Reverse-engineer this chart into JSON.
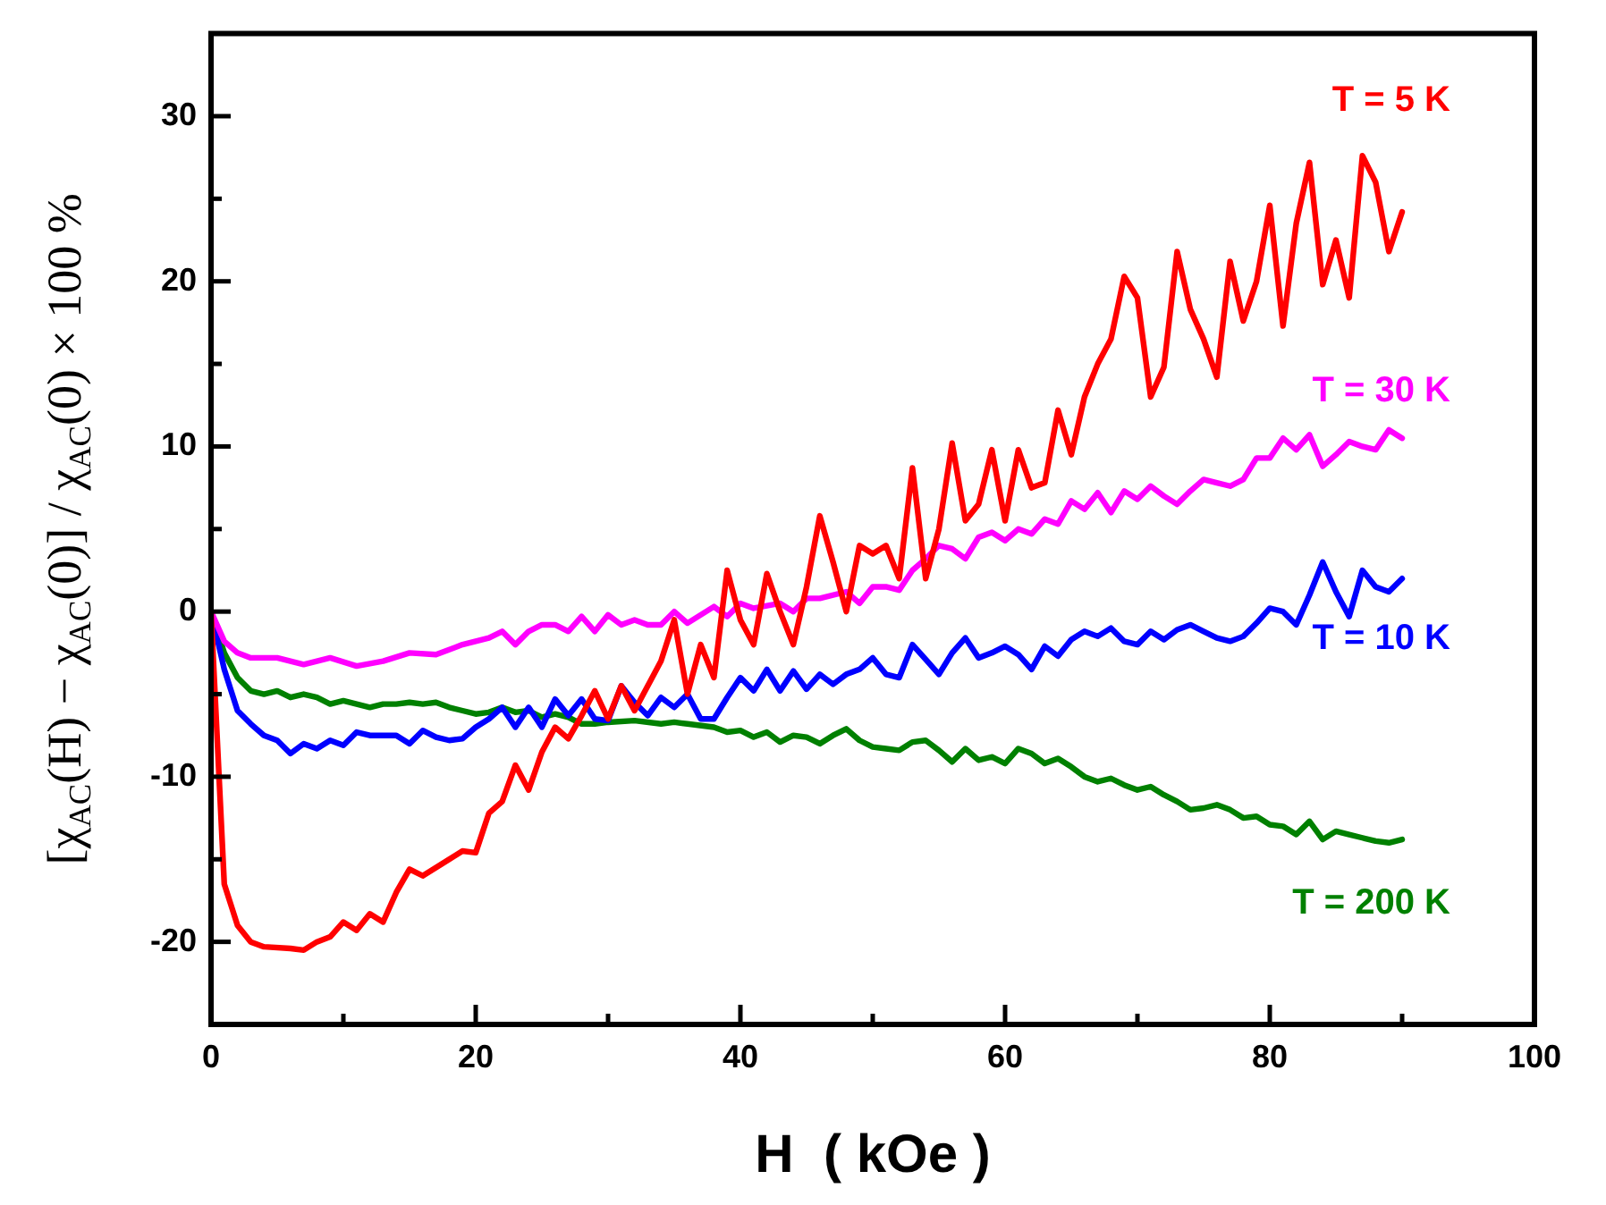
{
  "chart_data": {
    "type": "line",
    "xlabel": "H  ( kOe )",
    "ylabel": "[χ$_{AC}$(H) − χ$_{AC}$(0)] / χ$_{AC}$(0) × 100 %",
    "xlim": [
      0,
      100
    ],
    "xticks": [
      0,
      {
        "value": 10,
        "label": null
      },
      20,
      {
        "value": 30,
        "label": null
      },
      40,
      {
        "value": 50,
        "label": null
      },
      60,
      {
        "value": 70,
        "label": null
      },
      80,
      {
        "value": 90,
        "label": null
      },
      100
    ],
    "ylim": [
      -25,
      35
    ],
    "yticks": [
      -20,
      {
        "value": -15,
        "label": null
      },
      -10,
      {
        "value": -5,
        "label": null
      },
      0,
      {
        "value": 5,
        "label": null
      },
      10,
      {
        "value": 15,
        "label": null
      },
      20,
      {
        "value": 25,
        "label": null
      },
      30
    ],
    "grid": false,
    "legend": false,
    "marker": "none",
    "line_style": "solid",
    "series": [
      {
        "name": "T = 5 K",
        "color": "#ff0000",
        "x": [
          0,
          1,
          2,
          3,
          4,
          6,
          7,
          8,
          9,
          10,
          11,
          12,
          13,
          14,
          15,
          16,
          18,
          19,
          20,
          21,
          22,
          23,
          24,
          25,
          26,
          27,
          28,
          29,
          30,
          31,
          32,
          33,
          34,
          35,
          36,
          37,
          38,
          39,
          40,
          41,
          42,
          43,
          44,
          45,
          46,
          47,
          48,
          49,
          50,
          51,
          52,
          53,
          54,
          55,
          56,
          57,
          58,
          59,
          60,
          61,
          62,
          63,
          64,
          65,
          66,
          67,
          68,
          69,
          70,
          71,
          72,
          73,
          74,
          75,
          76,
          77,
          78,
          79,
          80,
          81,
          82,
          83,
          84,
          85,
          86,
          87,
          88,
          89,
          90
        ],
        "values": [
          0,
          -16.5,
          -19,
          -20,
          -20.3,
          -20.4,
          -20.5,
          -20,
          -19.7,
          -18.8,
          -19.3,
          -18.3,
          -18.8,
          -17,
          -15.6,
          -16,
          -15,
          -14.5,
          -14.6,
          -12.2,
          -11.5,
          -9.3,
          -10.8,
          -8.5,
          -7,
          -7.7,
          -6.3,
          -4.8,
          -6.5,
          -4.5,
          -6,
          -4.5,
          -3,
          -0.5,
          -5,
          -2,
          -4,
          2.5,
          -0.5,
          -2,
          2.3,
          0,
          -2,
          1.5,
          5.8,
          3,
          0,
          4,
          3.5,
          4,
          2,
          8.7,
          2,
          5,
          10.2,
          5.5,
          6.5,
          9.8,
          5.5,
          9.8,
          7.5,
          7.8,
          12.2,
          9.5,
          13,
          15,
          16.5,
          20.3,
          19,
          13,
          14.8,
          21.8,
          18.3,
          16.5,
          14.2,
          21.2,
          17.6,
          20,
          24.6,
          17.3,
          23.5,
          27.2,
          19.8,
          22.5,
          19,
          27.6,
          26,
          21.8,
          24.2
        ]
      },
      {
        "name": "T = 30 K",
        "color": "#ff00ff",
        "x": [
          0,
          1,
          2,
          3,
          5,
          7,
          9,
          11,
          13,
          15,
          17,
          19,
          21,
          22,
          23,
          24,
          25,
          26,
          27,
          28,
          29,
          30,
          31,
          32,
          33,
          34,
          35,
          36,
          38,
          39,
          40,
          41,
          43,
          44,
          45,
          46,
          48,
          49,
          50,
          51,
          52,
          53,
          54,
          55,
          56,
          57,
          58,
          59,
          60,
          61,
          62,
          63,
          64,
          65,
          66,
          67,
          68,
          69,
          70,
          71,
          72,
          73,
          74,
          75,
          76,
          77,
          78,
          79,
          80,
          81,
          82,
          83,
          84,
          85,
          86,
          87,
          88,
          89,
          90
        ],
        "values": [
          0,
          -1.8,
          -2.5,
          -2.8,
          -2.8,
          -3.2,
          -2.8,
          -3.3,
          -3,
          -2.5,
          -2.6,
          -2,
          -1.6,
          -1.2,
          -2,
          -1.2,
          -0.8,
          -0.8,
          -1.2,
          -0.3,
          -1.2,
          -0.2,
          -0.8,
          -0.5,
          -0.8,
          -0.8,
          0,
          -0.7,
          0.3,
          -0.3,
          0.5,
          0.2,
          0.5,
          0,
          0.8,
          0.8,
          1.2,
          0.5,
          1.5,
          1.5,
          1.3,
          2.5,
          3.2,
          4,
          3.8,
          3.2,
          4.5,
          4.8,
          4.3,
          5,
          4.7,
          5.6,
          5.3,
          6.7,
          6.2,
          7.2,
          6,
          7.3,
          6.8,
          7.6,
          7,
          6.5,
          7.3,
          8,
          7.8,
          7.6,
          8,
          9.3,
          9.3,
          10.5,
          9.8,
          10.7,
          8.8,
          9.5,
          10.3,
          10,
          9.8,
          11,
          10.5
        ]
      },
      {
        "name": "T = 10 K",
        "color": "#0000ff",
        "x": [
          0,
          1,
          2,
          3,
          4,
          5,
          6,
          7,
          8,
          9,
          10,
          11,
          12,
          14,
          15,
          16,
          17,
          18,
          19,
          20,
          21,
          22,
          23,
          24,
          25,
          26,
          27,
          28,
          29,
          30,
          31,
          32,
          33,
          34,
          35,
          36,
          37,
          38,
          39,
          40,
          41,
          42,
          43,
          44,
          45,
          46,
          47,
          48,
          49,
          50,
          51,
          52,
          53,
          54,
          55,
          56,
          57,
          58,
          59,
          60,
          61,
          62,
          63,
          64,
          65,
          66,
          67,
          68,
          69,
          70,
          71,
          72,
          73,
          74,
          75,
          76,
          77,
          78,
          79,
          80,
          81,
          82,
          83,
          84,
          85,
          86,
          87,
          88,
          89,
          90
        ],
        "values": [
          0,
          -3.5,
          -6,
          -6.8,
          -7.5,
          -7.8,
          -8.6,
          -8,
          -8.3,
          -7.8,
          -8.1,
          -7.3,
          -7.5,
          -7.5,
          -8,
          -7.2,
          -7.6,
          -7.8,
          -7.7,
          -7,
          -6.5,
          -5.8,
          -7,
          -5.8,
          -7,
          -5.3,
          -6.3,
          -5.3,
          -6.5,
          -6.6,
          -4.5,
          -5.5,
          -6.3,
          -5.2,
          -5.8,
          -5,
          -6.5,
          -6.5,
          -5.2,
          -4,
          -4.8,
          -3.5,
          -4.8,
          -3.6,
          -4.7,
          -3.8,
          -4.4,
          -3.8,
          -3.5,
          -2.8,
          -3.8,
          -4,
          -2,
          -2.9,
          -3.8,
          -2.5,
          -1.6,
          -2.8,
          -2.5,
          -2.1,
          -2.6,
          -3.5,
          -2.1,
          -2.7,
          -1.7,
          -1.2,
          -1.5,
          -1,
          -1.8,
          -2,
          -1.2,
          -1.7,
          -1.1,
          -0.8,
          -1.2,
          -1.6,
          -1.8,
          -1.5,
          -0.7,
          0.2,
          0,
          -0.8,
          1,
          3,
          1.2,
          -0.3,
          2.5,
          1.5,
          1.2,
          2
        ]
      },
      {
        "name": "T = 200 K",
        "color": "#008000",
        "x": [
          0,
          1,
          2,
          3,
          4,
          5,
          6,
          7,
          8,
          9,
          10,
          11,
          12,
          13,
          14,
          15,
          16,
          17,
          18,
          19,
          20,
          21,
          22,
          23,
          24,
          25,
          26,
          27,
          28,
          29,
          30,
          32,
          34,
          35,
          36,
          38,
          39,
          40,
          41,
          42,
          43,
          44,
          45,
          46,
          47,
          48,
          49,
          50,
          51,
          52,
          53,
          54,
          55,
          56,
          57,
          58,
          59,
          60,
          61,
          62,
          63,
          64,
          65,
          66,
          67,
          68,
          69,
          70,
          71,
          72,
          73,
          74,
          75,
          76,
          77,
          78,
          79,
          80,
          81,
          82,
          83,
          84,
          85,
          86,
          87,
          88,
          89,
          90
        ],
        "values": [
          0,
          -2.5,
          -4,
          -4.8,
          -5,
          -4.8,
          -5.2,
          -5,
          -5.2,
          -5.6,
          -5.4,
          -5.6,
          -5.8,
          -5.6,
          -5.6,
          -5.5,
          -5.6,
          -5.5,
          -5.8,
          -6,
          -6.2,
          -6.1,
          -5.8,
          -6.1,
          -6,
          -6.4,
          -6.2,
          -6.4,
          -6.8,
          -6.8,
          -6.7,
          -6.6,
          -6.8,
          -6.7,
          -6.8,
          -7,
          -7.3,
          -7.2,
          -7.6,
          -7.3,
          -7.9,
          -7.5,
          -7.6,
          -8,
          -7.5,
          -7.1,
          -7.8,
          -8.2,
          -8.3,
          -8.4,
          -7.9,
          -7.8,
          -8.4,
          -9.1,
          -8.3,
          -9,
          -8.8,
          -9.2,
          -8.3,
          -8.6,
          -9.2,
          -8.9,
          -9.4,
          -10,
          -10.3,
          -10.1,
          -10.5,
          -10.8,
          -10.6,
          -11.1,
          -11.5,
          -12,
          -11.9,
          -11.7,
          -12,
          -12.5,
          -12.4,
          -12.9,
          -13,
          -13.5,
          -12.7,
          -13.8,
          -13.3,
          -13.5,
          -13.7,
          -13.9,
          -14,
          -13.8
        ]
      }
    ]
  }
}
